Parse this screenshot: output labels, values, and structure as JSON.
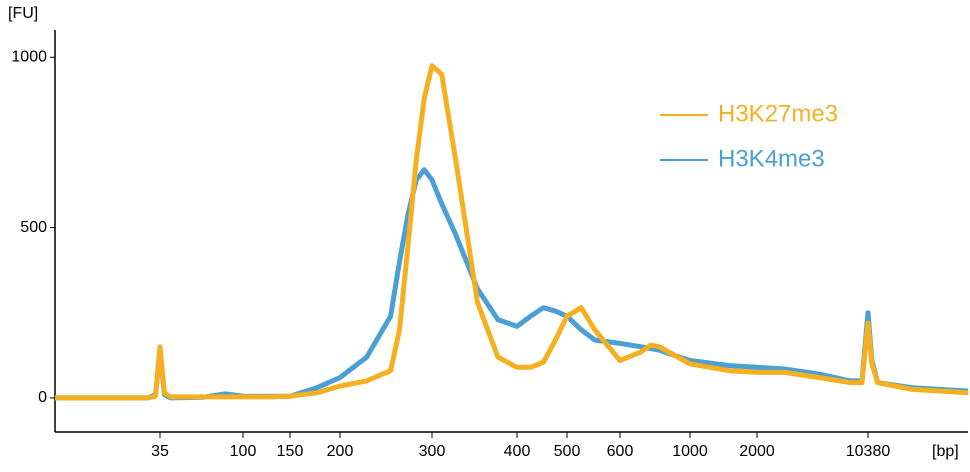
{
  "chart_data": {
    "type": "line",
    "y_label": "[FU]",
    "x_label": "[bp]",
    "x": [
      9,
      20,
      30,
      33,
      35,
      37,
      40,
      60,
      80,
      100,
      125,
      150,
      175,
      200,
      225,
      250,
      260,
      270,
      280,
      290,
      300,
      310,
      325,
      350,
      375,
      400,
      425,
      450,
      475,
      500,
      525,
      550,
      600,
      700,
      750,
      800,
      1000,
      1500,
      2000,
      3000,
      5000,
      8000,
      9500,
      10380,
      11000,
      12000,
      20000,
      46000
    ],
    "series": [
      {
        "name": "H3K27me3",
        "color": "#f5b021",
        "values": [
          0,
          0,
          0,
          5,
          150,
          15,
          3,
          3,
          3,
          3,
          3,
          5,
          15,
          35,
          50,
          80,
          200,
          450,
          700,
          880,
          975,
          950,
          700,
          280,
          120,
          90,
          90,
          105,
          170,
          240,
          265,
          200,
          110,
          135,
          155,
          150,
          100,
          80,
          75,
          75,
          60,
          45,
          45,
          220,
          100,
          45,
          25,
          15
        ]
      },
      {
        "name": "H3K4me3",
        "color": "#4a9fd4",
        "values": [
          0,
          0,
          0,
          10,
          140,
          10,
          0,
          2,
          12,
          5,
          5,
          5,
          30,
          60,
          120,
          240,
          400,
          540,
          640,
          670,
          640,
          570,
          480,
          320,
          230,
          210,
          240,
          265,
          255,
          240,
          200,
          170,
          160,
          150,
          145,
          140,
          110,
          95,
          90,
          85,
          70,
          50,
          50,
          250,
          110,
          45,
          30,
          20
        ]
      }
    ],
    "xlim": [
      9,
      46000
    ],
    "xticks": [
      35,
      100,
      150,
      200,
      300,
      400,
      500,
      600,
      1000,
      2000,
      10380
    ],
    "ylim": [
      -100,
      1080
    ],
    "yticks": [
      0,
      500,
      1000
    ],
    "legend": "top-right"
  }
}
